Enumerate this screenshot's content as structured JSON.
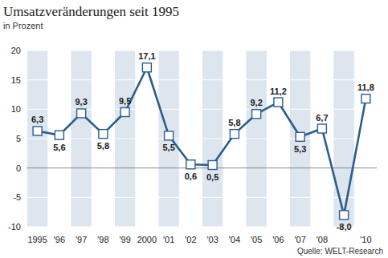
{
  "chart_data": {
    "type": "line",
    "title": "Umsatzveränderungen seit 1995",
    "subtitle": "in Prozent",
    "source": "Quelle: WELT-Research",
    "categories": [
      "1995",
      "'96",
      "'97",
      "'98",
      "'99",
      "2000",
      "'01",
      "'02",
      "'03",
      "'04",
      "'05",
      "'06",
      "'07",
      "'08",
      null,
      "'10"
    ],
    "values": [
      6.3,
      5.6,
      9.3,
      5.8,
      9.5,
      17.1,
      5.5,
      0.6,
      0.5,
      5.8,
      9.2,
      11.2,
      5.3,
      6.7,
      -8.0,
      11.8
    ],
    "value_labels": [
      "6,3",
      "5,6",
      "9,3",
      "5,8",
      "9,5",
      "17,1",
      "5,5",
      "0,6",
      "0,5",
      "5,8",
      "9,2",
      "11,2",
      "5,3",
      "6,7",
      "-8,0",
      "11,8"
    ],
    "color": "#2b5d8c",
    "marker": "square",
    "data_labels": true,
    "grid": true,
    "ylim": [
      -10,
      20
    ],
    "yticks": [
      -10,
      -5,
      0,
      5,
      10,
      15,
      20
    ]
  }
}
